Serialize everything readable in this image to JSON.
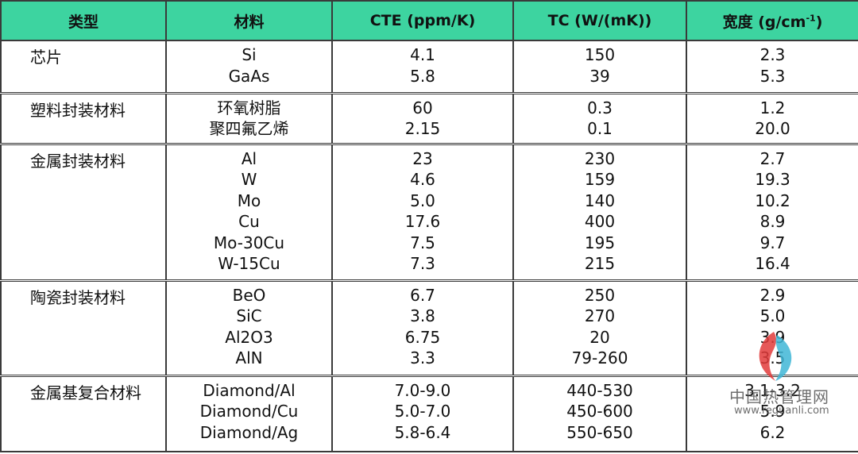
{
  "header": {
    "type": "类型",
    "material": "材料",
    "cte": "CTE (ppm/K)",
    "tc": "TC (W/(mK))",
    "density": "宽度 (g/cm",
    "density_sup": "-1",
    "density_close": ")"
  },
  "groups": [
    {
      "type": "芯片",
      "materials": [
        "Si",
        "GaAs"
      ],
      "cte": [
        "4.1",
        "5.8"
      ],
      "tc": [
        "150",
        "39"
      ],
      "density": [
        "2.3",
        "5.3"
      ]
    },
    {
      "type": "塑料封装材料",
      "materials": [
        "环氧树脂",
        "聚四氟乙烯"
      ],
      "cte": [
        "60",
        "2.15"
      ],
      "tc": [
        "0.3",
        "0.1"
      ],
      "density": [
        "1.2",
        "20.0"
      ]
    },
    {
      "type": "金属封装材料",
      "materials": [
        "Al",
        "W",
        "Mo",
        "Cu",
        "Mo-30Cu",
        "W-15Cu"
      ],
      "cte": [
        "23",
        "4.6",
        "5.0",
        "17.6",
        "7.5",
        "7.3"
      ],
      "tc": [
        "230",
        "159",
        "140",
        "400",
        "195",
        "215"
      ],
      "density": [
        "2.7",
        "19.3",
        "10.2",
        "8.9",
        "9.7",
        "16.4"
      ]
    },
    {
      "type": "陶瓷封装材料",
      "materials": [
        "BeO",
        "SiC",
        "Al2O3",
        "AlN"
      ],
      "cte": [
        "6.7",
        "3.8",
        "6.75",
        "3.3"
      ],
      "tc": [
        "250",
        "270",
        "20",
        "79-260"
      ],
      "density": [
        "2.9",
        "5.0",
        "3.9",
        "3.5"
      ]
    },
    {
      "type": "金属基复合材料",
      "materials": [
        "Diamond/Al",
        "Diamond/Cu",
        "Diamond/Ag"
      ],
      "cte": [
        "7.0-9.0",
        "5.0-7.0",
        "5.8-6.4"
      ],
      "tc": [
        "440-530",
        "450-600",
        "550-650"
      ],
      "density": [
        "3.1-3.2",
        "5.9",
        "6.2"
      ]
    }
  ],
  "watermark": {
    "title": "中国热管理网",
    "url": "www.reguanli.com",
    "colors": {
      "red": "#e23b3b",
      "cyan": "#3fb6d6"
    }
  }
}
